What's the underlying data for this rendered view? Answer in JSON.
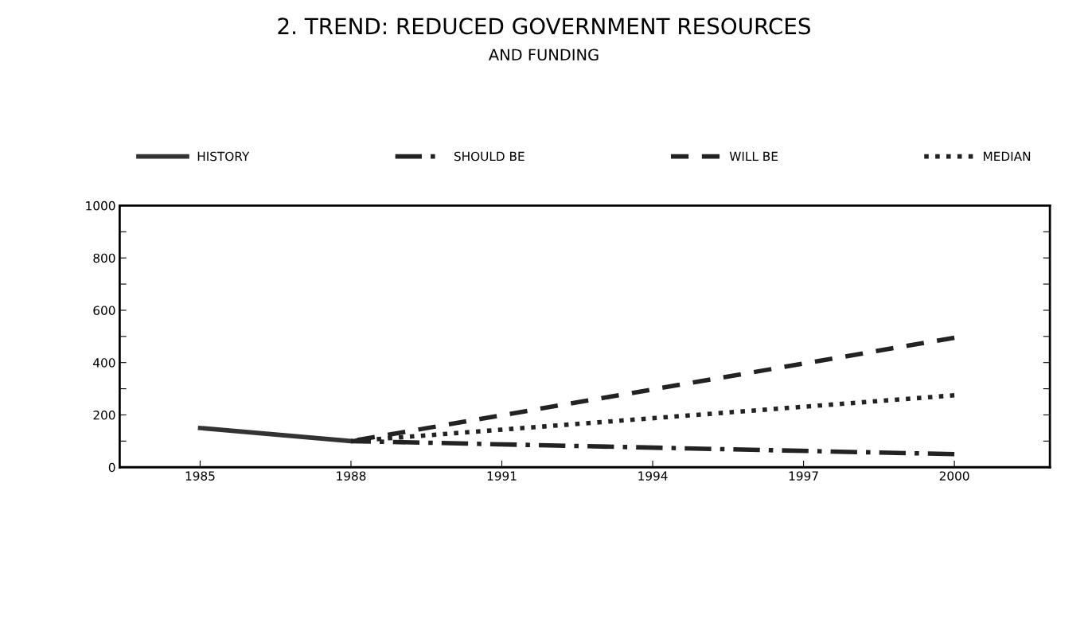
{
  "chart_data": {
    "type": "line",
    "title": "2. TREND: REDUCED GOVERNMENT RESOURCES",
    "subtitle": "AND FUNDING",
    "x": [
      1985,
      1988,
      2000
    ],
    "series": [
      {
        "name": "HISTORY",
        "color": "#333333",
        "line_style": "solid",
        "values": [
          150,
          100,
          null
        ]
      },
      {
        "name": "SHOULD BE",
        "color": "#222222",
        "line_style": "dashdot",
        "values": [
          null,
          100,
          50
        ]
      },
      {
        "name": "WILL BE",
        "color": "#222222",
        "line_style": "dashed",
        "values": [
          null,
          100,
          495
        ]
      },
      {
        "name": "MEDIAN",
        "color": "#222222",
        "line_style": "dotted",
        "values": [
          null,
          100,
          275
        ]
      }
    ],
    "xlim": [
      1983.4,
      2001.9
    ],
    "xticks": [
      1985,
      1988,
      1991,
      1994,
      1997,
      2000
    ],
    "ylim": [
      0,
      1000
    ],
    "yticks": [
      0,
      {
        "value": 100,
        "label": null
      },
      200,
      {
        "value": 300,
        "label": null
      },
      400,
      {
        "value": 500,
        "label": null
      },
      600,
      {
        "value": 700,
        "label": null
      },
      800,
      {
        "value": 900,
        "label": null
      },
      1000
    ],
    "grid": false,
    "legend": "top",
    "marker": "none"
  }
}
